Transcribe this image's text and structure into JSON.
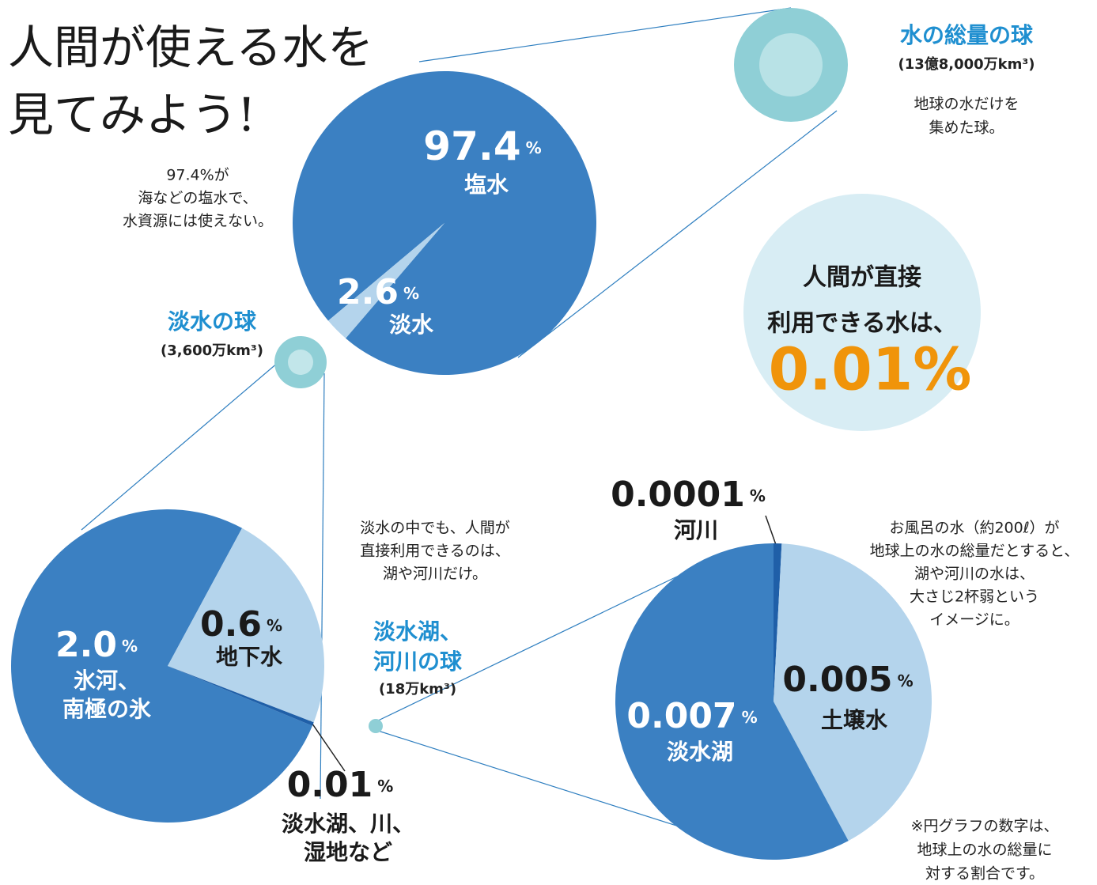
{
  "title": [
    "人間が使える水を",
    "見てみよう!"
  ],
  "chart_data": [
    {
      "type": "pie",
      "title": [
        "水の総量の球"
      ],
      "subtitle": "(13億8,000万km³)",
      "description": [
        "地球の水だけを",
        "集めた球。"
      ],
      "note": [
        "97.4%が",
        "海などの塩水で、",
        "水資源には使えない。"
      ],
      "categories": [
        [
          "塩水"
        ],
        [
          "淡水"
        ]
      ],
      "values": [
        97.4,
        2.6
      ],
      "unit": "%",
      "colors": [
        "#3b80c2",
        "#b4d4ec"
      ]
    },
    {
      "type": "pie",
      "title": [
        "淡水の球"
      ],
      "subtitle": "(3,600万km³)",
      "note": [
        "淡水の中でも、人間が",
        "直接利用できるのは、",
        "湖や河川だけ。"
      ],
      "categories": [
        [
          "氷河、",
          "南極の氷"
        ],
        [
          "地下水"
        ],
        [
          "淡水湖、川、",
          "湿地など"
        ]
      ],
      "values": [
        2.0,
        0.6,
        0.01
      ],
      "value_labels": [
        "2.0",
        "0.6",
        "0.01"
      ],
      "unit": "%",
      "colors": [
        "#3b80c2",
        "#b4d4ec",
        "#1f5fa8"
      ]
    },
    {
      "type": "pie",
      "title": [
        "淡水湖、",
        "河川の球"
      ],
      "subtitle": "(18万km³)",
      "note": [
        "お風呂の水（約200ℓ）が",
        "地球上の水の総量だとすると、",
        "湖や河川の水は、",
        "大さじ2杯弱という",
        "イメージに。"
      ],
      "categories": [
        [
          "河川"
        ],
        [
          "土壌水"
        ],
        [
          "淡水湖"
        ]
      ],
      "values": [
        0.0001,
        0.005,
        0.007
      ],
      "unit": "%",
      "colors": [
        "#1f5fa8",
        "#b4d4ec",
        "#3b80c2"
      ]
    }
  ],
  "callout": {
    "lines": [
      "人間が直接",
      "利用できる水は、"
    ],
    "value": "0.01%"
  },
  "footnote": [
    "※円グラフの数字は、",
    "地球上の水の総量に",
    "対する割合です。"
  ]
}
